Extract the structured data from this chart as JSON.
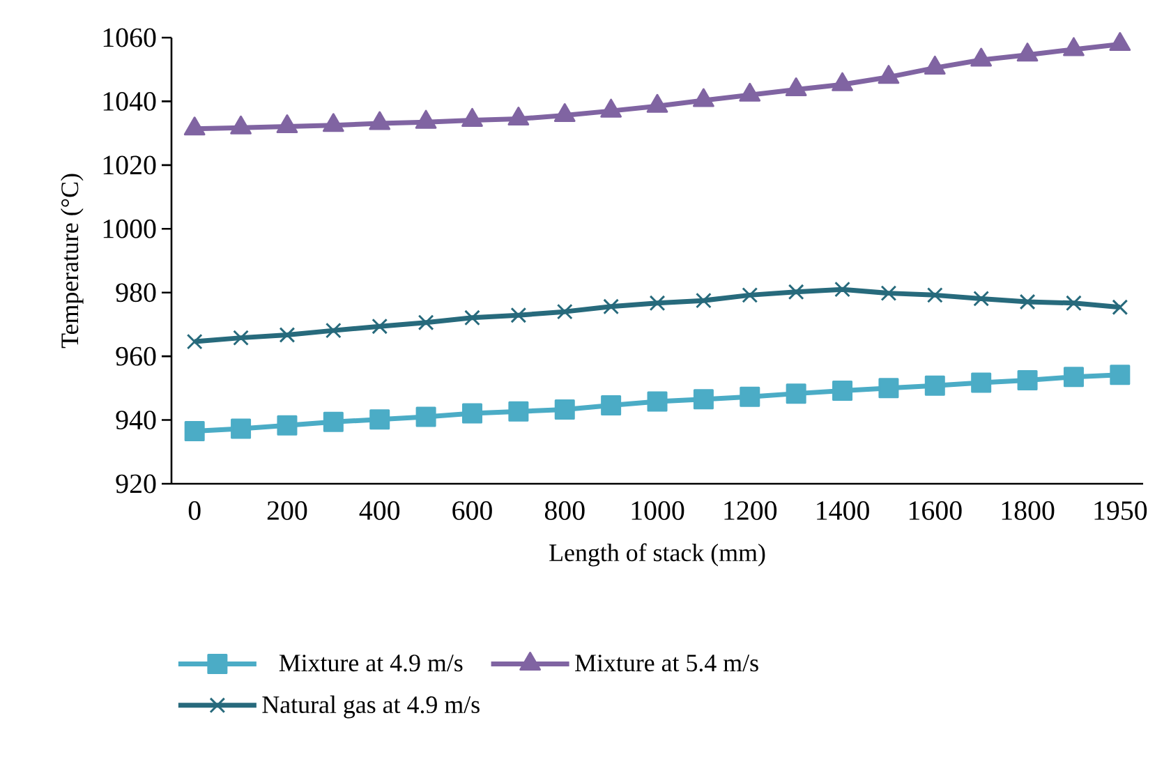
{
  "chart_data": {
    "type": "line",
    "xlabel": "Length of stack (mm)",
    "ylabel": "Temperature (°C)",
    "categories": [
      "0",
      null,
      "200",
      null,
      "400",
      null,
      "600",
      null,
      "800",
      null,
      "1000",
      null,
      "1200",
      null,
      "1400",
      null,
      "1600",
      null,
      "1800",
      null,
      "1950"
    ],
    "ylim": [
      920,
      1060
    ],
    "yticks": [
      920,
      940,
      960,
      980,
      1000,
      1020,
      1040,
      1060
    ],
    "grid": false,
    "legend": "bottom",
    "line_style": "solid",
    "series": [
      {
        "name": "Mixture at 4.9 m/s",
        "color": "#4bacc6",
        "marker": "square",
        "values": [
          936.5,
          937.3,
          938.3,
          939.4,
          940.2,
          941.0,
          942.1,
          942.7,
          943.3,
          944.6,
          945.8,
          946.5,
          947.3,
          948.3,
          949.2,
          950.0,
          950.8,
          951.7,
          952.5,
          953.5,
          954.2
        ]
      },
      {
        "name": "Mixture at 5.4 m/s",
        "color": "#8064a2",
        "marker": "triangle",
        "values": [
          1031.4,
          1031.7,
          1032.1,
          1032.5,
          1033.1,
          1033.5,
          1034.1,
          1034.5,
          1035.6,
          1037.0,
          1038.5,
          1040.3,
          1042.0,
          1043.7,
          1045.3,
          1047.6,
          1050.5,
          1053.0,
          1054.6,
          1056.3,
          1057.9
        ]
      },
      {
        "name": "Natural gas at 4.9 m/s",
        "color": "#276a7c",
        "marker": "cross",
        "values": [
          964.6,
          965.8,
          966.7,
          968.1,
          969.4,
          970.6,
          972.1,
          972.9,
          974.0,
          975.6,
          976.7,
          977.5,
          979.2,
          980.2,
          981.0,
          979.8,
          979.2,
          978.1,
          977.1,
          976.7,
          975.4
        ]
      }
    ]
  }
}
